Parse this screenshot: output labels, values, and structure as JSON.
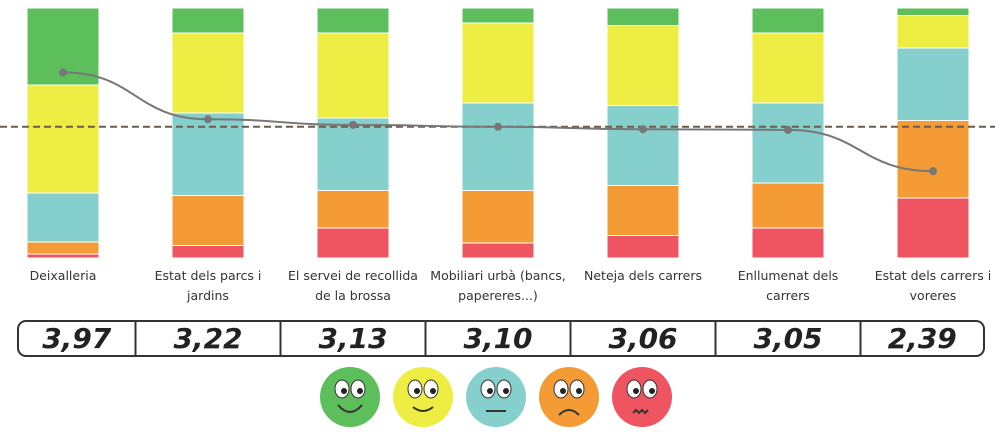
{
  "chart_data": {
    "type": "bar",
    "stacked": true,
    "categories": [
      "Deixalleria",
      "Estat dels parcs i jardins",
      "El servei de recollida de la brossa",
      "Mobiliari urbà (bancs, papereres...)",
      "Neteja dels carrers",
      "Enllumenat dels carrers",
      "Estat dels carrers i voreres"
    ],
    "series": [
      {
        "color": "#ef5461",
        "values": [
          1.6,
          5,
          12,
          6,
          9,
          12,
          24
        ]
      },
      {
        "color": "#f49b35",
        "values": [
          4.8,
          20,
          15,
          21,
          20,
          18,
          31
        ]
      },
      {
        "color": "#85d0cc",
        "values": [
          19.6,
          33,
          29,
          35,
          32,
          32,
          29
        ]
      },
      {
        "color": "#eded44",
        "values": [
          43.2,
          32,
          34,
          32,
          32,
          28,
          13
        ]
      },
      {
        "color": "#5cbf5b",
        "values": [
          30.8,
          10,
          10,
          6,
          7,
          10,
          3
        ]
      }
    ],
    "ylim": [
      0,
      100
    ],
    "line": {
      "color": "#777777",
      "values": [
        3.97,
        3.22,
        3.13,
        3.1,
        3.06,
        3.05,
        2.39
      ],
      "value_labels": [
        "3,97",
        "3,22",
        "3,13",
        "3,10",
        "3,06",
        "3,05",
        "2,39"
      ],
      "axis": "y2"
    },
    "y2lim": [
      1,
      5
    ],
    "reference_line": {
      "value": 3.1,
      "color": "#6b5a4e",
      "axis": "y2"
    }
  }
}
